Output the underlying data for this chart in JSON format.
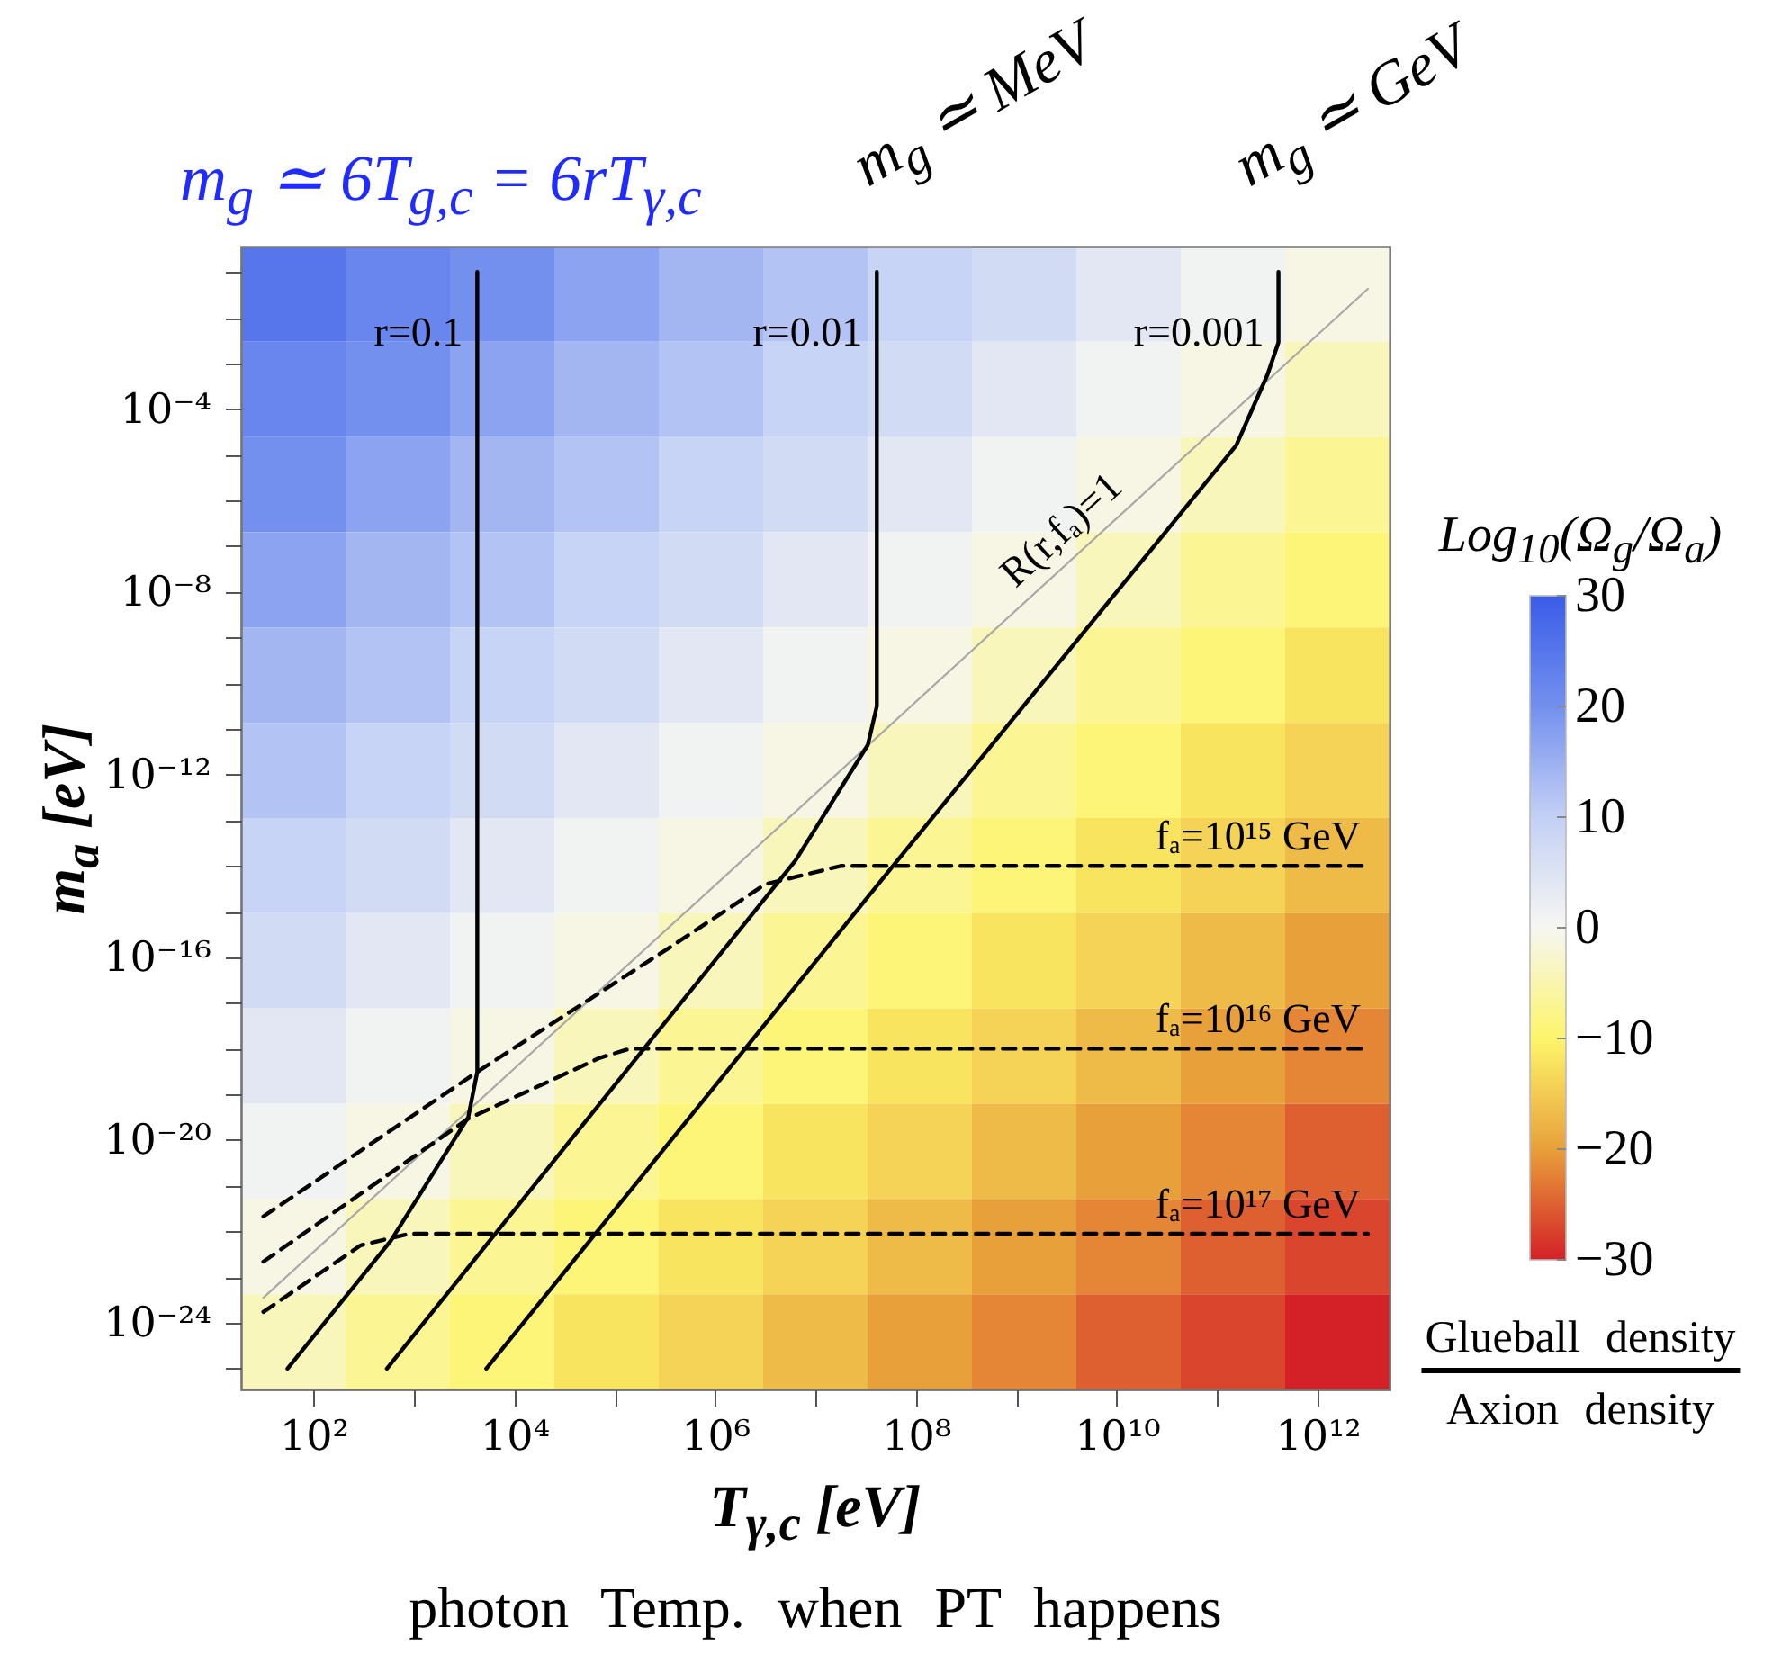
{
  "chart_data": [
    {
      "type": "heatmap",
      "clabel": "Log$_{10}$(Ω$_{g}$/Ω$_{a}$)",
      "tick_labels": false,
      "clim": [
        -30,
        30
      ],
      "cticks": [
        -30,
        -20,
        -10,
        0,
        10,
        20,
        30
      ],
      "colors": [
        "#d42027",
        "#e8a03a",
        "#fdf56a",
        "#f6f6f2",
        "#c3d0f5",
        "#7390ee",
        "#3a5ce8"
      ],
      "categories": [
        null,
        null,
        null,
        null,
        null,
        null,
        null,
        null,
        null,
        null,
        null
      ],
      "y_categories": [
        null,
        null,
        null,
        null,
        null,
        null,
        null,
        null,
        null,
        null,
        null,
        null
      ],
      "cells": [
        [
          25,
          22,
          20,
          17,
          14,
          12,
          9,
          7,
          4,
          1,
          -1
        ],
        [
          22,
          20,
          17,
          14,
          12,
          9,
          7,
          4,
          1,
          -1,
          -4
        ],
        [
          20,
          17,
          14,
          12,
          9,
          7,
          4,
          1,
          -1,
          -4,
          -7
        ],
        [
          17,
          14,
          12,
          9,
          7,
          4,
          1,
          -1,
          -4,
          -7,
          -9
        ],
        [
          14,
          12,
          9,
          7,
          4,
          1,
          -1,
          -4,
          -7,
          -9,
          -12
        ],
        [
          12,
          9,
          7,
          4,
          1,
          -1,
          -4,
          -7,
          -9,
          -12,
          -14
        ],
        [
          9,
          7,
          4,
          1,
          -1,
          -4,
          -7,
          -9,
          -12,
          -14,
          -17
        ],
        [
          7,
          4,
          1,
          -1,
          -4,
          -7,
          -9,
          -12,
          -14,
          -17,
          -20
        ],
        [
          4,
          1,
          -1,
          -4,
          -7,
          -9,
          -12,
          -14,
          -17,
          -20,
          -22
        ],
        [
          1,
          -1,
          -4,
          -7,
          -9,
          -12,
          -14,
          -17,
          -20,
          -22,
          -25
        ],
        [
          -1,
          -4,
          -7,
          -9,
          -12,
          -14,
          -17,
          -20,
          -22,
          -25,
          -27
        ],
        [
          -4,
          -7,
          -9,
          -12,
          -14,
          -17,
          -20,
          -22,
          -25,
          -27,
          -30
        ]
      ]
    },
    {
      "type": "line",
      "title": "m$_{g}$ ≃ 6T$_{g,c}$ = 6rT$_{γ,c}$",
      "xlabel": "T$_{γ,c}$ [eV]",
      "ylabel": "m$_{a}$ [eV]",
      "log": "xy",
      "xlim": [
        19,
        5200000000000.0
      ],
      "ylim": [
        3.5e-26,
        0.36
      ],
      "xticks": [
        {
          "value": 100.0,
          "label": "10²"
        },
        {
          "value": 1000.0,
          "label": null
        },
        {
          "value": 10000.0,
          "label": "10⁴"
        },
        {
          "value": 100000.0,
          "label": null
        },
        {
          "value": 1000000.0,
          "label": "10⁶"
        },
        {
          "value": 10000000.0,
          "label": null
        },
        {
          "value": 100000000.0,
          "label": "10⁸"
        },
        {
          "value": 1000000000.0,
          "label": null
        },
        {
          "value": 10000000000.0,
          "label": "10¹⁰"
        },
        {
          "value": 100000000000.0,
          "label": null
        },
        {
          "value": 1000000000000.0,
          "label": "10¹²"
        }
      ],
      "yticks": [
        {
          "value": 1e-25,
          "label": null
        },
        {
          "value": 1e-24,
          "label": "10⁻²⁴"
        },
        {
          "value": 1e-23,
          "label": null
        },
        {
          "value": 1e-22,
          "label": null
        },
        {
          "value": 1e-21,
          "label": null
        },
        {
          "value": 1e-20,
          "label": "10⁻²⁰"
        },
        {
          "value": 1e-19,
          "label": null
        },
        {
          "value": 1e-18,
          "label": null
        },
        {
          "value": 1e-17,
          "label": null
        },
        {
          "value": 1e-16,
          "label": "10⁻¹⁶"
        },
        {
          "value": 1e-15,
          "label": null
        },
        {
          "value": 1e-14,
          "label": null
        },
        {
          "value": 1e-13,
          "label": null
        },
        {
          "value": 1e-12,
          "label": "10⁻¹²"
        },
        {
          "value": 1e-11,
          "label": null
        },
        {
          "value": 1e-10,
          "label": null
        },
        {
          "value": 1e-09,
          "label": null
        },
        {
          "value": 1e-08,
          "label": "10⁻⁸"
        },
        {
          "value": 1e-07,
          "label": null
        },
        {
          "value": 1e-06,
          "label": null
        },
        {
          "value": 1e-05,
          "label": null
        },
        {
          "value": 0.0001,
          "label": "10⁻⁴"
        },
        {
          "value": 0.001,
          "label": null
        },
        {
          "value": 0.01,
          "label": null
        },
        {
          "value": 0.1,
          "label": null
        }
      ],
      "series": [
        {
          "name": "R(r,fₐ)=1",
          "color": "#a8a8a8",
          "x": [
            31.62,
            3162000000000.0
          ],
          "values": [
            3.55e-24,
            0.0427
          ]
        },
        {
          "name": "r=0.1",
          "color": "#000000",
          "x": [
            55,
            589,
            3470,
            4270,
            4270
          ],
          "values": [
            1e-25,
            6.31e-23,
            3.16e-20,
            3.16e-19,
            0.1
          ]
        },
        {
          "name": "r=0.01",
          "color": "#000000",
          "x": [
            537,
            190500.0,
            6310000.0,
            33100000.0,
            40700000.0,
            40700000.0
          ],
          "values": [
            1e-25,
            9.33e-19,
            1.32e-14,
            4.47e-12,
            3.16e-11,
            0.1
          ]
        },
        {
          "name": "r=0.001",
          "color": "#000000",
          "x": [
            5250,
            58900000.0,
            155000000000.0,
            316000000000.0,
            407000000000.0,
            407000000000.0
          ],
          "values": [
            1e-25,
            1e-14,
            1.62e-05,
            0.000562,
            0.00288,
            0.1
          ]
        },
        {
          "name": "fₐ=10¹⁵ GeV",
          "color": "#000000",
          "line_style": "dashed",
          "x": [
            31.62,
            4680,
            316000.0,
            3160000.0,
            17800000.0,
            3162000000000.0
          ],
          "values": [
            2.14e-22,
            3.55e-19,
            1.41e-16,
            3.98e-15,
            1e-14,
            1e-14
          ]
        },
        {
          "name": "fₐ=10¹⁶ GeV",
          "color": "#000000",
          "line_style": "dashed",
          "x": [
            31.62,
            3470,
            70800.0,
            141000.0,
            3162000000000.0
          ],
          "values": [
            2.19e-23,
            2.95e-20,
            6.31e-19,
            1e-18,
            1e-18
          ]
        },
        {
          "name": "fₐ=10¹⁷ GeV",
          "color": "#000000",
          "line_style": "dashed",
          "x": [
            31.62,
            295,
            891,
            3162000000000.0
          ],
          "values": [
            1.74e-24,
            5.01e-23,
            8.91e-23,
            8.91e-23
          ]
        }
      ],
      "annotations": [
        "m$_{g}$ ≃ MeV",
        "m$_{g}$ ≃ GeV",
        "Glueball density",
        "Axion density",
        "photon Temp. when PT happens"
      ]
    }
  ]
}
